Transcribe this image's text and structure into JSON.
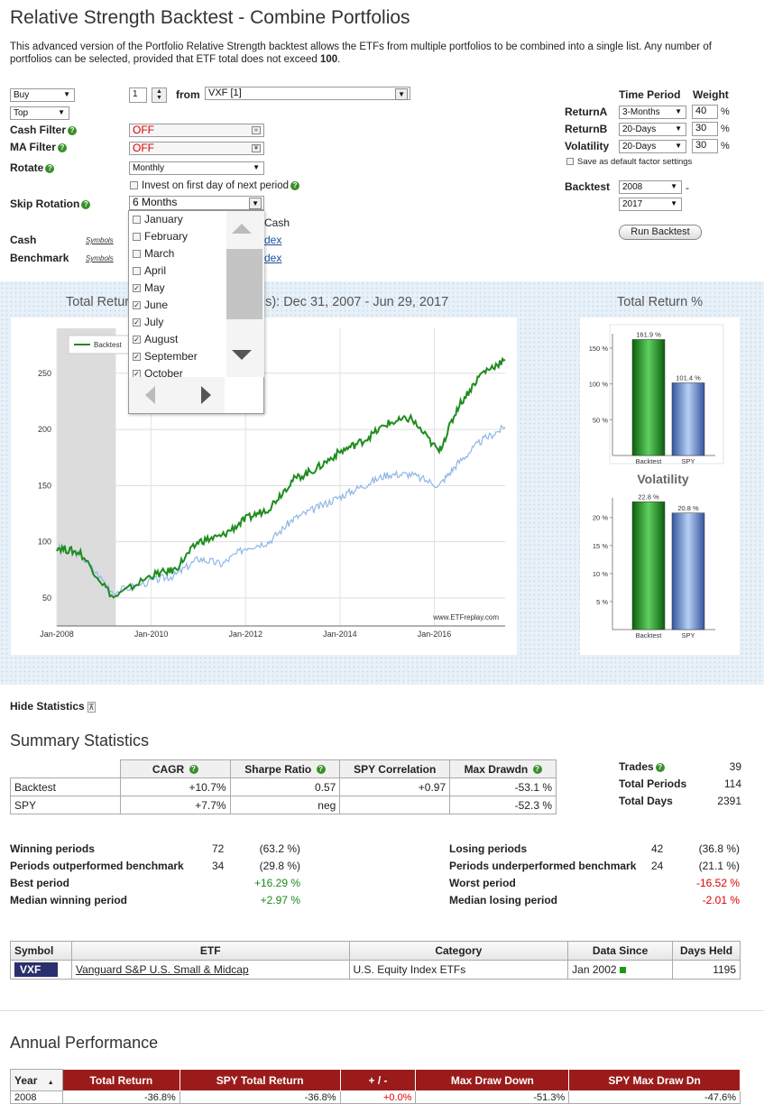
{
  "title": "Relative Strength Backtest - Combine Portfolios",
  "intro_pre": "This advanced version of the Portfolio Relative Strength backtest allows the ETFs from multiple portfolios to be combined into a single list. Any number of portfolios can be selected, provided that ETF total does not exceed ",
  "intro_bold": "100",
  "intro_post": ".",
  "form": {
    "action": "Buy",
    "rank": "Top",
    "count": "1",
    "from_label": "from",
    "portfolio": "VXF [1]",
    "cash_filter_label": "Cash Filter",
    "cash_filter": "OFF",
    "ma_filter_label": "MA Filter",
    "ma_filter": "OFF",
    "rotate_label": "Rotate",
    "rotate": "Monthly",
    "invest_first_day": "Invest on first day of next period",
    "skip_rotation_label": "Skip Rotation",
    "skip_rotation": "6 Months",
    "cash_label": "Cash",
    "benchmark_label": "Benchmark",
    "symbols": "Symbols",
    "behind_cash": "Cash",
    "behind_index1": "dex",
    "behind_index2": "dex"
  },
  "months": [
    {
      "name": "January",
      "checked": false
    },
    {
      "name": "February",
      "checked": false
    },
    {
      "name": "March",
      "checked": false
    },
    {
      "name": "April",
      "checked": false
    },
    {
      "name": "May",
      "checked": true
    },
    {
      "name": "June",
      "checked": true
    },
    {
      "name": "July",
      "checked": true
    },
    {
      "name": "August",
      "checked": true
    },
    {
      "name": "September",
      "checked": true
    },
    {
      "name": "October",
      "checked": true
    }
  ],
  "factors": {
    "time_period": "Time Period",
    "weight": "Weight",
    "returnA_label": "ReturnA",
    "returnA": "3-Months",
    "returnA_w": "40",
    "returnB_label": "ReturnB",
    "returnB": "20-Days",
    "returnB_w": "30",
    "vol_label": "Volatility",
    "vol": "20-Days",
    "vol_w": "30",
    "pct": "%",
    "save_default": "Save as default factor settings",
    "backtest_label": "Backtest",
    "start_year": "2008",
    "end_year": "2017",
    "dash": "-",
    "run_button": "Run Backtest"
  },
  "chart_main_title": "Total Return (Daily Periods): Dec 31, 2007 - Jun 29, 2017",
  "chart_main_title_visible_left": "Total Retur",
  "chart_main_title_visible_right": "ds): Dec 31, 2007 - Jun 29, 2017",
  "chart_data": [
    {
      "type": "line",
      "title": "Total Return (Daily Periods): Dec 31, 2007 - Jun 29, 2017",
      "x_ticks": [
        "Jan-2008",
        "Jan-2010",
        "Jan-2012",
        "Jan-2014",
        "Jan-2016"
      ],
      "y_ticks": [
        50,
        100,
        150,
        200,
        250
      ],
      "ylim": [
        25,
        290
      ],
      "legend": "top-left",
      "watermark": "www.ETFreplay.com",
      "series": [
        {
          "name": "Backtest",
          "color": "#1e8c1e",
          "x": [
            2008,
            2008.5,
            2009.2,
            2010,
            2010.5,
            2011,
            2011.5,
            2012,
            2012.5,
            2013,
            2013.5,
            2014,
            2014.5,
            2015,
            2015.5,
            2016.1,
            2016.5,
            2017,
            2017.5
          ],
          "y": [
            95,
            90,
            50,
            70,
            75,
            100,
            105,
            120,
            130,
            155,
            165,
            180,
            190,
            205,
            210,
            180,
            220,
            250,
            262
          ]
        },
        {
          "name": "",
          "color": "#8fb6e8",
          "x": [
            2008,
            2008.5,
            2009.2,
            2010,
            2010.5,
            2011,
            2011.5,
            2012,
            2012.5,
            2013,
            2013.5,
            2014,
            2014.5,
            2015,
            2015.5,
            2016.1,
            2016.5,
            2017,
            2017.5
          ],
          "y": [
            95,
            88,
            55,
            65,
            70,
            85,
            80,
            95,
            100,
            120,
            130,
            140,
            150,
            160,
            160,
            150,
            170,
            190,
            202
          ]
        }
      ]
    },
    {
      "type": "bar",
      "title": "Total Return %",
      "categories": [
        "Backtest",
        "SPY"
      ],
      "values": [
        161.9,
        101.4
      ],
      "labels": [
        "161.9 %",
        "101.4 %"
      ],
      "y_ticks": [
        "50 %",
        "100 %",
        "150 %"
      ],
      "ylim": [
        0,
        170
      ]
    },
    {
      "type": "bar",
      "title": "Volatility",
      "categories": [
        "Backtest",
        "SPY"
      ],
      "values": [
        22.8,
        20.8
      ],
      "labels": [
        "22.8 %",
        "20.8 %"
      ],
      "y_ticks": [
        "5 %",
        "10 %",
        "15 %",
        "20 %"
      ],
      "ylim": [
        0,
        23.5
      ]
    }
  ],
  "hide_stats": "Hide Statistics",
  "summary_title": "Summary Statistics",
  "summary_headers": [
    "",
    "CAGR",
    "Sharpe Ratio",
    "SPY Correlation",
    "Max Drawdn"
  ],
  "summary_rows": [
    [
      "Backtest",
      "+10.7%",
      "0.57",
      "+0.97",
      "-53.1 %"
    ],
    [
      "SPY",
      "+7.7%",
      "neg",
      "",
      "-52.3 %"
    ]
  ],
  "trades": {
    "trades_label": "Trades",
    "trades": "39",
    "periods_label": "Total Periods",
    "periods": "114",
    "days_label": "Total Days",
    "days": "2391"
  },
  "periods_left": [
    {
      "label": "Winning periods",
      "n": "72",
      "pct": "(63.2 %)"
    },
    {
      "label": "Periods outperformed benchmark",
      "n": "34",
      "pct": "(29.8 %)"
    },
    {
      "label": "Best period",
      "n": "",
      "pct": "+16.29 %"
    },
    {
      "label": "Median winning period",
      "n": "",
      "pct": "+2.97 %"
    }
  ],
  "periods_right": [
    {
      "label": "Losing periods",
      "n": "42",
      "pct": "(36.8 %)"
    },
    {
      "label": "Periods underperformed benchmark",
      "n": "24",
      "pct": "(21.1 %)"
    },
    {
      "label": "Worst period",
      "n": "",
      "pct": "-16.52 %"
    },
    {
      "label": "Median losing period",
      "n": "",
      "pct": "-2.01 %"
    }
  ],
  "etf_headers": [
    "Symbol",
    "ETF",
    "Category",
    "Data Since",
    "Days Held"
  ],
  "etf_row": {
    "symbol": "VXF",
    "name": "Vanguard S&P U.S. Small & Midcap",
    "category": "U.S. Equity Index ETFs",
    "since": "Jan 2002",
    "days": "1195"
  },
  "annual_title": "Annual Performance",
  "annual_headers": [
    "Year",
    "Total Return",
    "SPY Total Return",
    "+ / -",
    "Max Draw Down",
    "SPY Max Draw Dn"
  ],
  "annual_row": [
    "2008",
    "-36.8%",
    "-36.8%",
    "+0.0%",
    "-51.3%",
    "-47.6%"
  ]
}
